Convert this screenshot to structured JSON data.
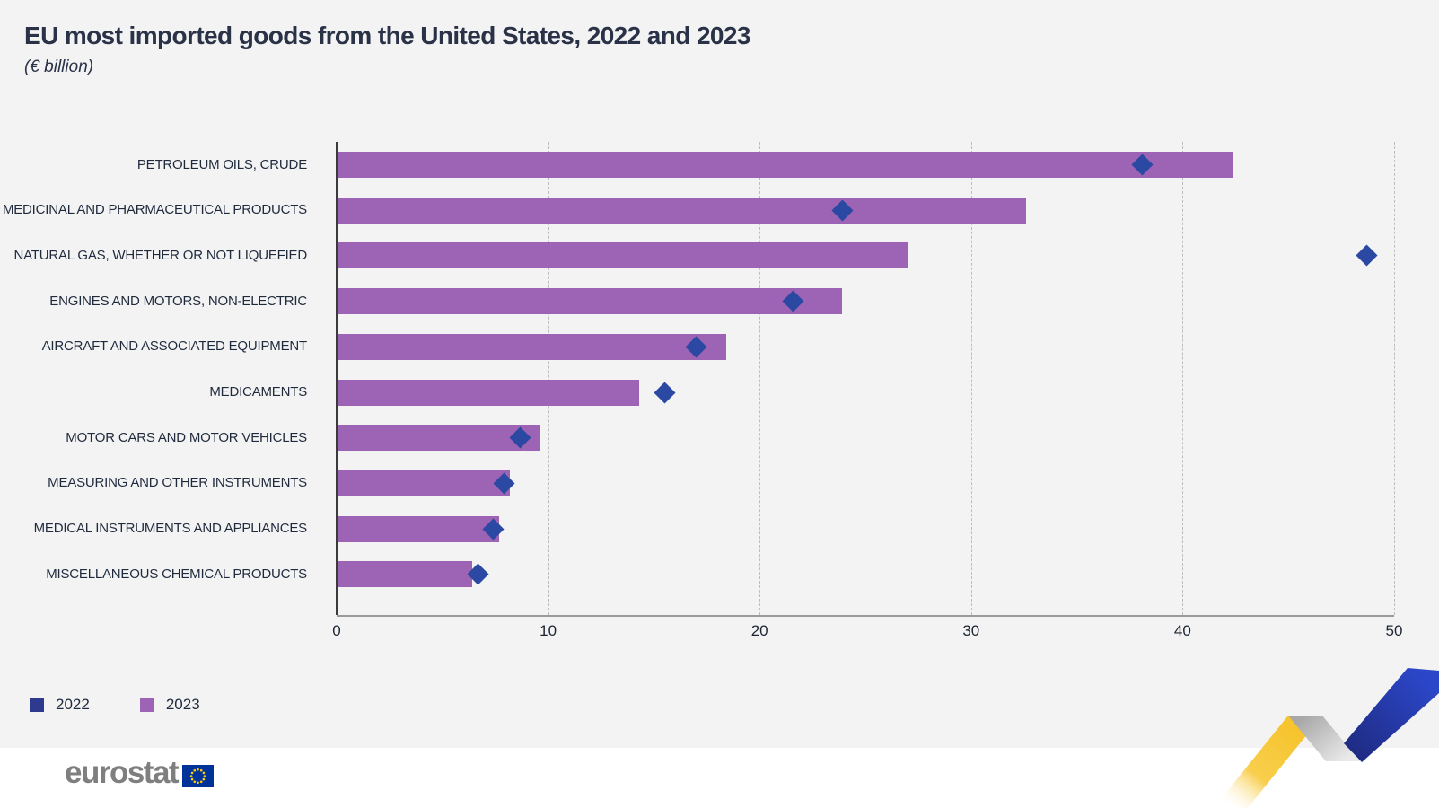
{
  "header": {
    "title": "EU most imported goods from the United States, 2022 and 2023",
    "subtitle": "(€ billion)"
  },
  "legend": {
    "items": [
      {
        "label": "2022",
        "color": "#2e3a8e",
        "marker": "diamond"
      },
      {
        "label": "2023",
        "color": "#9d63b5",
        "marker": "bar"
      }
    ]
  },
  "footer": {
    "logo_text": "eurostat"
  },
  "colors": {
    "panel_bg": "#f3f3f4",
    "bar_2023": "#9d63b5",
    "marker_2022": "#2b49a2",
    "title_text": "#2a3247",
    "axis_label": "#1c2433",
    "category_label": "#1f2a3c",
    "gridline": "#bdbdbd",
    "axis_line": "#9a9a9a",
    "eu_flag_blue": "#003399",
    "eu_star_yellow": "#ffcc00",
    "logo_gray": "#7f7f7f",
    "ribbon_yellow": "#f5c124",
    "ribbon_gray": "#c2c2c2",
    "ribbon_blue": "#2b46c8"
  },
  "chart_data": {
    "type": "bar",
    "orientation": "horizontal",
    "title": "EU most imported goods from the United States, 2022 and 2023",
    "unit": "(€ billion)",
    "categories": [
      "PETROLEUM OILS, CRUDE",
      "MEDICINAL AND PHARMACEUTICAL PRODUCTS",
      "NATURAL GAS, WHETHER OR NOT LIQUEFIED",
      "ENGINES AND MOTORS, NON-ELECTRIC",
      "AIRCRAFT AND ASSOCIATED EQUIPMENT",
      "MEDICAMENTS",
      "MOTOR CARS AND MOTOR VEHICLES",
      "MEASURING AND OTHER INSTRUMENTS",
      "MEDICAL INSTRUMENTS AND APPLIANCES",
      "MISCELLANEOUS CHEMICAL PRODUCTS"
    ],
    "series": [
      {
        "name": "2022",
        "style": "diamond-marker",
        "color": "#2b49a2",
        "values": [
          38.1,
          23.9,
          48.7,
          21.6,
          17.0,
          15.5,
          8.7,
          7.9,
          7.4,
          6.7
        ]
      },
      {
        "name": "2023",
        "style": "bar",
        "color": "#9d63b5",
        "values": [
          42.4,
          32.6,
          27.0,
          23.9,
          18.4,
          14.3,
          9.6,
          8.2,
          7.7,
          6.4
        ]
      }
    ],
    "x_axis": {
      "min": 0,
      "max": 50,
      "ticks": [
        0,
        10,
        20,
        30,
        40,
        50
      ]
    },
    "gridlines": "vertical-dashed",
    "legend_position": "bottom-left"
  }
}
